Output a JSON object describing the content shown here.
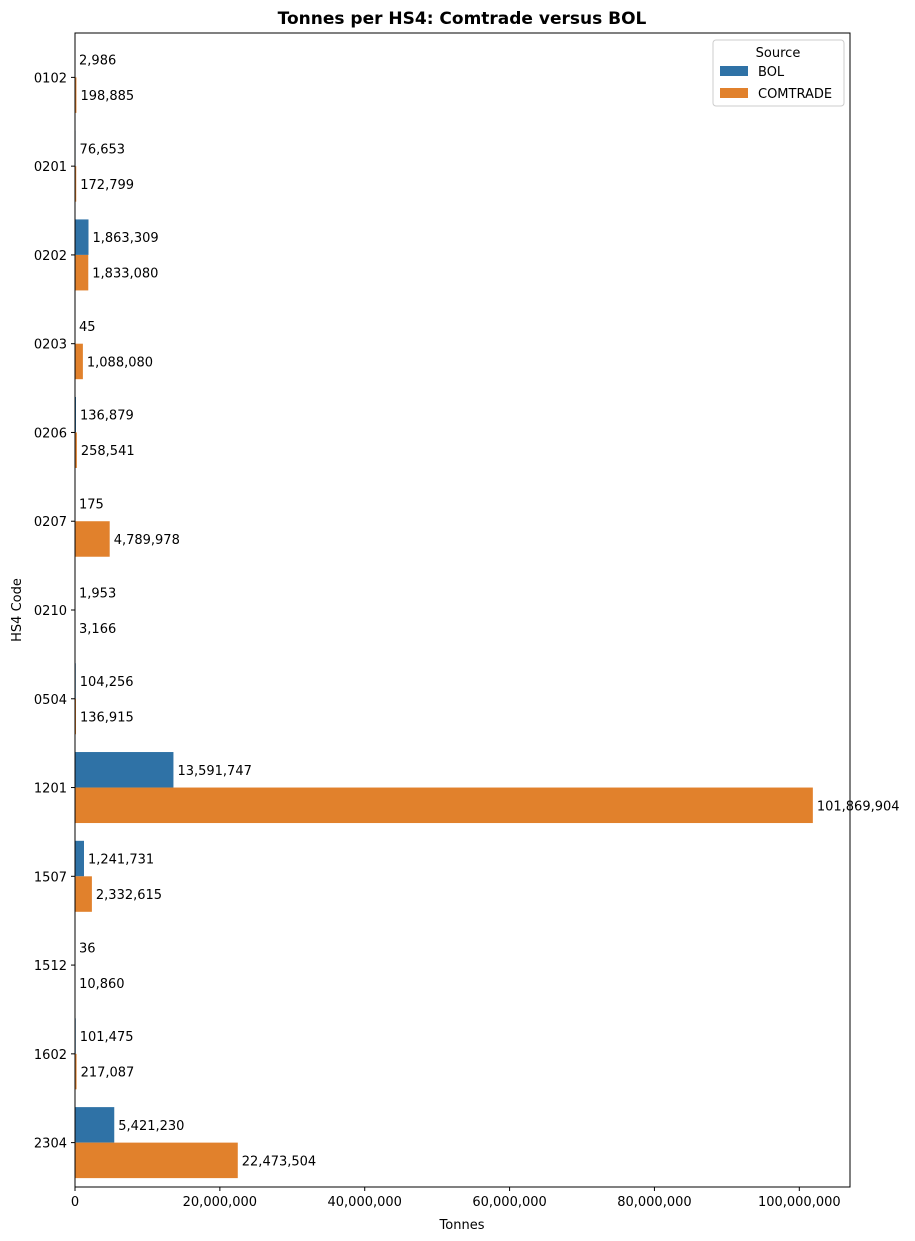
{
  "chart_data": {
    "type": "bar",
    "orientation": "horizontal",
    "title": "Tonnes per HS4: Comtrade versus BOL",
    "xlabel": "Tonnes",
    "ylabel": "HS4 Code",
    "xlim": [
      0,
      107000000
    ],
    "xticks": [
      0,
      20000000,
      40000000,
      60000000,
      80000000,
      100000000
    ],
    "xtick_labels": [
      "0",
      "20,000,000",
      "40,000,000",
      "60,000,000",
      "80,000,000",
      "100,000,000"
    ],
    "categories": [
      "0102",
      "0201",
      "0202",
      "0203",
      "0206",
      "0207",
      "0210",
      "0504",
      "1201",
      "1507",
      "1512",
      "1602",
      "2304"
    ],
    "legend": {
      "title": "Source",
      "position": "top-right"
    },
    "series": [
      {
        "name": "BOL",
        "color": "#2f72a6",
        "values": [
          2986,
          76653,
          1863309,
          45,
          136879,
          175,
          1953,
          104256,
          13591747,
          1241731,
          36,
          101475,
          5421230
        ],
        "labels": [
          "2,986",
          "76,653",
          "1,863,309",
          "45",
          "136,879",
          "175",
          "1,953",
          "104,256",
          "13,591,747",
          "1,241,731",
          "36",
          "101,475",
          "5,421,230"
        ]
      },
      {
        "name": "COMTRADE",
        "color": "#e1812c",
        "values": [
          198885,
          172799,
          1833080,
          1088080,
          258541,
          4789978,
          3166,
          136915,
          101869904,
          2332615,
          10860,
          217087,
          22473504
        ],
        "labels": [
          "198,885",
          "172,799",
          "1,833,080",
          "1,088,080",
          "258,541",
          "4,789,978",
          "3,166",
          "136,915",
          "101,869,904",
          "2,332,615",
          "10,860",
          "217,087",
          "22,473,504"
        ]
      }
    ]
  }
}
